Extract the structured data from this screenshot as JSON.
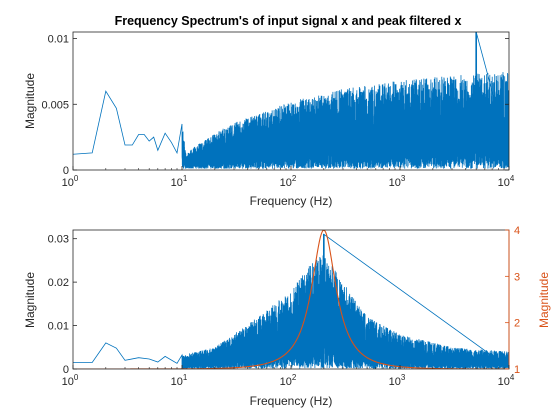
{
  "chart_data": [
    {
      "type": "line",
      "title": "Frequency Spectrum's of input signal x and peak filtered x",
      "xlabel": "Frequency (Hz)",
      "ylabel": "Magnitude",
      "xscale": "log",
      "xlim": [
        1,
        10000
      ],
      "ylim": [
        0,
        0.0105
      ],
      "xticks": [
        1,
        10,
        100,
        1000,
        10000
      ],
      "xtick_labels": [
        {
          "base": "10",
          "exp": "0"
        },
        {
          "base": "10",
          "exp": "1"
        },
        {
          "base": "10",
          "exp": "2"
        },
        {
          "base": "10",
          "exp": "3"
        },
        {
          "base": "10",
          "exp": "4"
        }
      ],
      "yticks": [
        0,
        0.005,
        0.01
      ],
      "ytick_labels": [
        "0",
        "0.005",
        "0.01"
      ],
      "grid": false,
      "series": [
        {
          "color": "#0072bd",
          "points": [
            [
              1,
              0.0012
            ],
            [
              1.5,
              0.0013
            ],
            [
              2,
              0.006
            ],
            [
              2.5,
              0.0047
            ],
            [
              3,
              0.0019
            ],
            [
              3.5,
              0.0019
            ],
            [
              4,
              0.0027
            ],
            [
              4.5,
              0.0027
            ],
            [
              5,
              0.0022
            ],
            [
              5.5,
              0.0025
            ],
            [
              6,
              0.0015
            ],
            [
              7,
              0.0028
            ],
            [
              8,
              0.0021
            ],
            [
              9,
              0.0013
            ],
            [
              10,
              0.0035
            ],
            [
              11,
              0.0012
            ],
            [
              13,
              0.0018
            ],
            [
              15,
              0.0021
            ],
            [
              20,
              0.0028
            ],
            [
              30,
              0.0036
            ],
            [
              50,
              0.0043
            ],
            [
              100,
              0.0052
            ],
            [
              300,
              0.0062
            ],
            [
              1000,
              0.0068
            ],
            [
              3000,
              0.0072
            ],
            [
              10000,
              0.0075
            ]
          ],
          "peak": [
            5000,
            0.0105
          ],
          "noise_floor": 0.0001
        }
      ]
    },
    {
      "type": "line",
      "xlabel": "Frequency (Hz)",
      "ylabel": "Magnitude",
      "ylabel_right": "Magnitude",
      "xscale": "log",
      "xlim": [
        1,
        10000
      ],
      "ylim": [
        0,
        0.032
      ],
      "ylim_right": [
        1,
        4
      ],
      "xticks": [
        1,
        10,
        100,
        1000,
        10000
      ],
      "xtick_labels": [
        {
          "base": "10",
          "exp": "0"
        },
        {
          "base": "10",
          "exp": "1"
        },
        {
          "base": "10",
          "exp": "2"
        },
        {
          "base": "10",
          "exp": "3"
        },
        {
          "base": "10",
          "exp": "4"
        }
      ],
      "yticks": [
        0,
        0.01,
        0.02,
        0.03
      ],
      "ytick_labels": [
        "0",
        "0.01",
        "0.02",
        "0.03"
      ],
      "yticks_right": [
        1,
        2,
        3,
        4
      ],
      "ytick_labels_right": [
        "1",
        "2",
        "3",
        "4"
      ],
      "grid": false,
      "series": [
        {
          "color": "#0072bd",
          "axis": "left",
          "points": [
            [
              1,
              0.0015
            ],
            [
              1.5,
              0.0015
            ],
            [
              2,
              0.006
            ],
            [
              2.5,
              0.0048
            ],
            [
              3,
              0.002
            ],
            [
              4,
              0.0026
            ],
            [
              5,
              0.0023
            ],
            [
              6,
              0.0016
            ],
            [
              7,
              0.0029
            ],
            [
              9,
              0.0013
            ],
            [
              10,
              0.0032
            ],
            [
              20,
              0.005
            ],
            [
              50,
              0.012
            ],
            [
              100,
              0.018
            ],
            [
              150,
              0.024
            ],
            [
              200,
              0.027
            ],
            [
              300,
              0.02
            ],
            [
              500,
              0.012
            ],
            [
              1000,
              0.008
            ],
            [
              3000,
              0.005
            ],
            [
              10000,
              0.004
            ]
          ],
          "peak": [
            200,
            0.031
          ],
          "noise_floor": 0.0001
        },
        {
          "color": "#d95319",
          "axis": "right",
          "filter": {
            "center_hz": 200,
            "peak_gain": 4,
            "base_gain": 1,
            "q": 1.6
          }
        }
      ]
    }
  ]
}
